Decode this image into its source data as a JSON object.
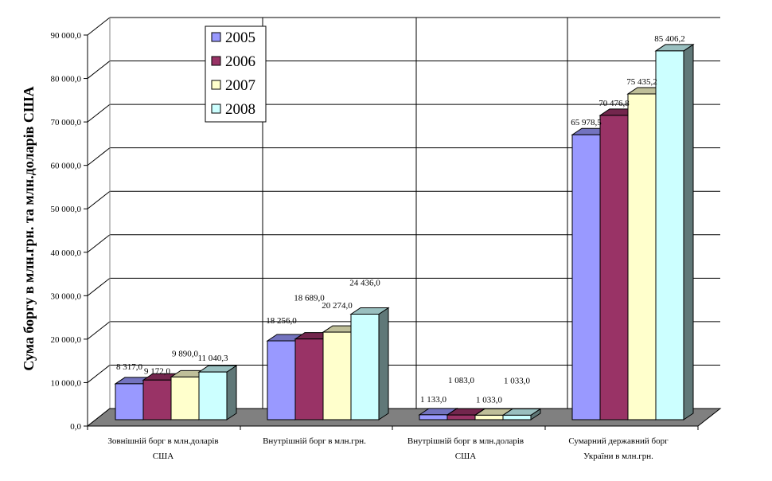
{
  "chart_data": {
    "type": "bar",
    "title": "",
    "xlabel": "",
    "ylabel": "Сума боргу в млн.грн. та млн.доларів США",
    "ylim": [
      0,
      90000
    ],
    "yticks": [
      "0,0",
      "10 000,0",
      "20 000,0",
      "30 000,0",
      "40 000,0",
      "50 000,0",
      "60 000,0",
      "70 000,0",
      "80 000,0",
      "90 000,0"
    ],
    "ytick_values": [
      0,
      10000,
      20000,
      30000,
      40000,
      50000,
      60000,
      70000,
      80000,
      90000
    ],
    "categories": [
      [
        "Зовнішній борг в млн.доларів",
        "США"
      ],
      [
        "Внутрішній борг в млн.грн.",
        ""
      ],
      [
        "Внутрішній борг в млн.доларів",
        "США"
      ],
      [
        "Сумарний  державний борг",
        "України в млн.грн."
      ]
    ],
    "legend_position": "top-left",
    "grid": true,
    "series": [
      {
        "name": "2005",
        "color": "#9999FF",
        "values": [
          8317.0,
          18256.0,
          1133.0,
          65978.5
        ],
        "labels": [
          "8 317,0",
          "18 256,0",
          "1 133,0",
          "65 978,5"
        ]
      },
      {
        "name": "2006",
        "color": "#993366",
        "values": [
          9172.0,
          18689.0,
          1083.0,
          70476.8
        ],
        "labels": [
          "9 172,0",
          "18 689,0",
          "1 083,0",
          "70 476,8"
        ]
      },
      {
        "name": "2007",
        "color": "#FFFFCC",
        "values": [
          9890.0,
          20274.0,
          1033.0,
          75435.2
        ],
        "labels": [
          "9 890,0",
          "20 274,0",
          "1 033,0",
          "75 435,2"
        ]
      },
      {
        "name": "2008",
        "color": "#CCFFFF",
        "values": [
          11040.3,
          24436.0,
          1033.0,
          85406.2
        ],
        "labels": [
          "11 040,3",
          "24 436,0",
          "1 033,0",
          "85 406,2"
        ]
      }
    ]
  }
}
